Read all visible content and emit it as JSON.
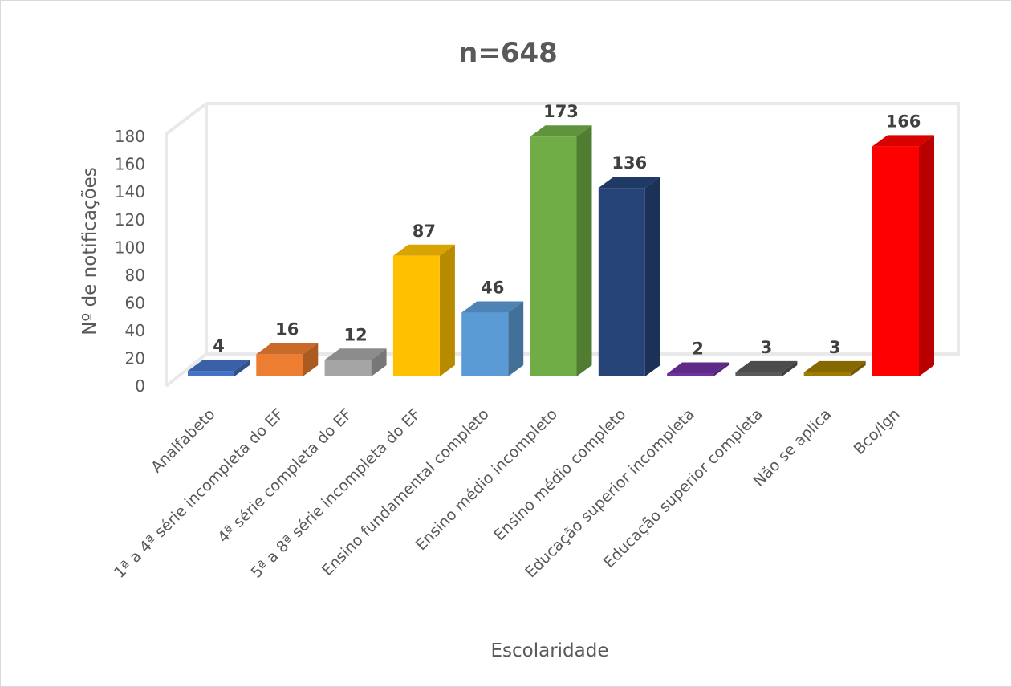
{
  "chart_data": {
    "type": "bar",
    "title": "n=648",
    "xlabel": "Escolaridade",
    "ylabel": "Nº de notificações",
    "ylim": [
      0,
      180
    ],
    "yticks": [
      "0",
      "20",
      "40",
      "60",
      "80",
      "100",
      "120",
      "140",
      "160",
      "180"
    ],
    "grid": false,
    "legend": "none",
    "style": "3d-column",
    "categories": [
      "Analfabeto",
      "1ª a 4ª série incompleta do EF",
      "4ª série completa do EF",
      "5ª a 8ª série incompleta do EF",
      "Ensino fundamental completo",
      "Ensino médio incompleto",
      "Ensino médio completo",
      "Educação superior incompleta",
      "Educação superior completa",
      "Não se aplica",
      "Bco/Ign"
    ],
    "values": [
      4,
      16,
      12,
      87,
      46,
      173,
      136,
      2,
      3,
      3,
      166
    ],
    "data_labels": [
      "4",
      "16",
      "12",
      "87",
      "46",
      "173",
      "136",
      "2",
      "3",
      "3",
      "166"
    ],
    "colors": [
      "#4472C4",
      "#ED7D31",
      "#A5A5A5",
      "#FFC000",
      "#5B9BD5",
      "#70AD47",
      "#264478",
      "#7030A0",
      "#595959",
      "#9E7A00",
      "#FF0000"
    ]
  }
}
